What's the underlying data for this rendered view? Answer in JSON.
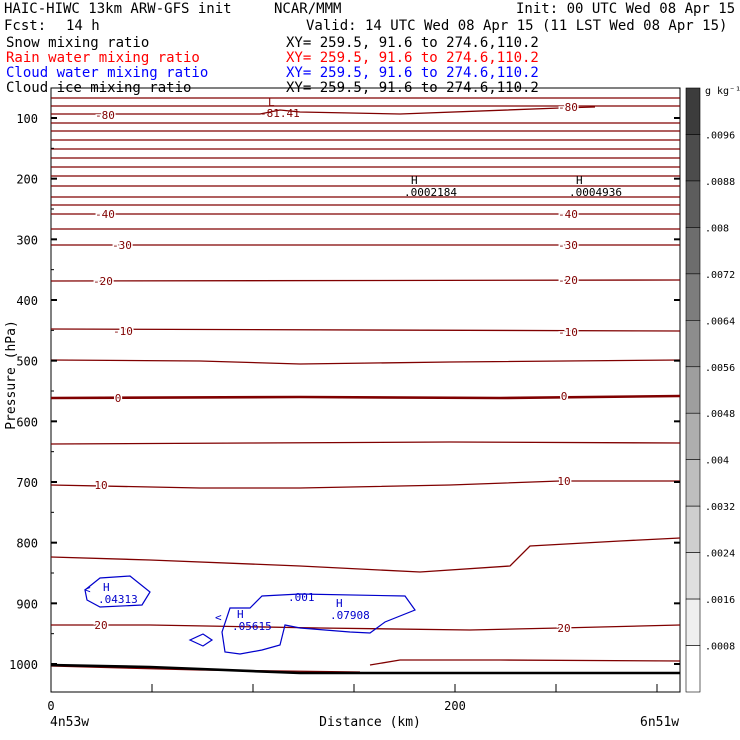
{
  "header": {
    "model": "HAIC-HIWC 13km ARW-GFS init",
    "org": "NCAR/MMM",
    "init": "Init: 00 UTC Wed 08 Apr 15",
    "fcst_label": "Fcst:",
    "fcst_value": "14 h",
    "valid": "Valid: 14 UTC Wed 08 Apr 15 (11 LST Wed 08 Apr 15)",
    "fields": [
      {
        "name": "Snow mixing ratio",
        "xy": "XY= 259.5, 91.6 to 274.6,110.2",
        "color": "#000000"
      },
      {
        "name": "Rain water mixing ratio",
        "xy": "XY= 259.5, 91.6 to 274.6,110.2",
        "color": "#ff0000"
      },
      {
        "name": "Cloud water mixing ratio",
        "xy": "XY= 259.5, 91.6 to 274.6,110.2",
        "color": "#0000ff"
      },
      {
        "name": "Cloud ice mixing ratio",
        "xy": "XY= 259.5, 91.6 to 274.6,110.2",
        "color": "#000000"
      }
    ]
  },
  "chart_data": {
    "type": "contour",
    "xlabel": "Distance (km)",
    "ylabel": "Pressure (hPa)",
    "x_ticks": [
      0,
      200
    ],
    "x_range": [
      0,
      300
    ],
    "y_ticks": [
      100,
      200,
      300,
      400,
      500,
      600,
      700,
      800,
      900,
      1000
    ],
    "y_range": [
      50,
      1050
    ],
    "x_endpoint_labels": {
      "left": "4n53w",
      "right": "6n51w"
    },
    "colorbar": {
      "unit": "g kg⁻¹",
      "labels": [
        ".0096",
        ".0088",
        ".008",
        ".0072",
        ".0064",
        ".0056",
        ".0048",
        ".004",
        ".0032",
        ".0024",
        ".0016",
        ".0008"
      ]
    },
    "temperature_contour_labels": [
      "-80",
      "-40",
      "-30",
      "-20",
      "-10",
      "0",
      "10",
      "20"
    ],
    "annotations": [
      {
        "mark": "L",
        "value": "-81.41"
      },
      {
        "mark": "H",
        "value": ".0002184"
      },
      {
        "mark": "H",
        "value": ".0004936"
      },
      {
        "mark": "H",
        "value": ".04313"
      },
      {
        "mark": "H",
        "value": ".05615"
      },
      {
        "mark": "H",
        "value": ".07908"
      },
      {
        "mark": "",
        "value": ".001"
      }
    ],
    "colors": {
      "temperature": "#800000",
      "cloud_water": "#0000cc",
      "ground": "#000000"
    }
  }
}
